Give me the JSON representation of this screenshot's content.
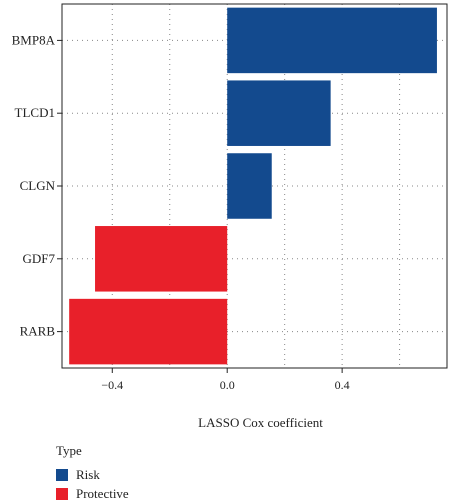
{
  "chart_data": {
    "type": "bar",
    "orientation": "horizontal",
    "categories": [
      "BMP8A",
      "TLCD1",
      "CLGN",
      "GDF7",
      "RARB"
    ],
    "values": [
      0.73,
      0.36,
      0.155,
      -0.46,
      -0.55
    ],
    "types": [
      "Risk",
      "Risk",
      "Risk",
      "Protective",
      "Protective"
    ],
    "xlabel": "LASSO Cox coefficient",
    "ylabel": "",
    "xlim": [
      -0.575,
      0.765
    ],
    "xticks": [
      {
        "value": -0.4,
        "label": "−0.4"
      },
      {
        "value": 0.0,
        "label": "0.0"
      },
      {
        "value": 0.4,
        "label": "0.4"
      }
    ],
    "grid": true,
    "legend": {
      "title": "Type",
      "placement": "bottom-left",
      "items": [
        {
          "label": "Risk",
          "color": "#134a8e"
        },
        {
          "label": "Protective",
          "color": "#e8202a"
        }
      ]
    }
  }
}
